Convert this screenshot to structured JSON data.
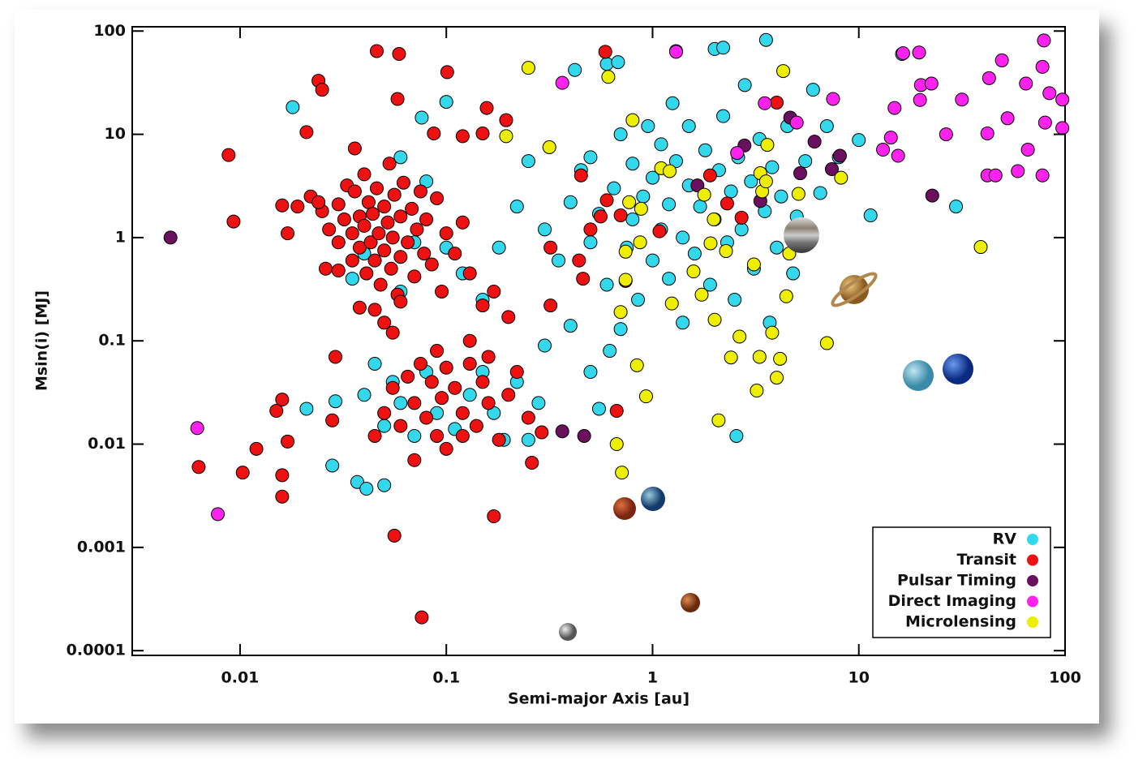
{
  "chart_data": {
    "type": "scatter",
    "x_label": "Semi-major Axis [au]",
    "y_label": "Msin(i) [MJ]",
    "xlog": true,
    "ylog": true,
    "xlim": [
      0.003,
      100
    ],
    "ylim": [
      9e-05,
      110
    ],
    "xticks": [
      0.01,
      0.1,
      1,
      10,
      100
    ],
    "yticks": [
      0.0001,
      0.001,
      0.01,
      0.1,
      1,
      10,
      100
    ],
    "legend": "lower right",
    "series": [
      {
        "name": "RV",
        "color": "#33d8ec",
        "x": [
          0.3,
          0.35,
          0.4,
          0.45,
          0.5,
          0.5,
          0.55,
          0.6,
          0.65,
          0.7,
          0.75,
          0.8,
          0.8,
          0.85,
          0.9,
          0.95,
          1.0,
          1.0,
          1.1,
          1.1,
          1.2,
          1.2,
          1.25,
          1.3,
          1.4,
          1.4,
          1.5,
          1.5,
          1.6,
          1.7,
          1.8,
          1.9,
          2.0,
          2.1,
          2.2,
          2.3,
          2.4,
          2.5,
          2.6,
          2.7,
          2.8,
          3.0,
          3.1,
          3.3,
          3.5,
          3.7,
          3.8,
          4.0,
          4.2,
          4.5,
          4.8,
          5.0,
          5.5,
          6.0,
          6.5,
          7.0,
          8.0,
          0.6,
          0.42,
          0.68,
          0.25,
          0.22,
          0.18,
          0.15,
          0.12,
          0.04,
          0.045,
          0.05,
          0.055,
          0.06,
          0.07,
          0.08,
          0.09,
          0.11,
          0.13,
          0.15,
          0.17,
          0.19,
          0.22,
          0.25,
          0.28,
          0.3,
          0.4,
          0.5,
          0.55,
          0.62,
          0.7,
          0.035,
          0.04,
          0.06,
          0.07,
          0.08,
          0.1,
          0.06,
          0.018,
          0.021,
          0.029,
          0.028,
          0.037,
          0.041,
          0.05,
          0.076,
          0.1,
          1.3,
          2.0,
          2.2,
          3.55,
          16.2,
          11.4,
          29.6,
          10.0,
          2.55
        ],
        "values": [
          1.2,
          0.6,
          2.2,
          4.5,
          0.9,
          6.0,
          1.7,
          0.35,
          3.0,
          10,
          0.8,
          1.5,
          5.2,
          0.25,
          2.5,
          12,
          0.6,
          3.8,
          1.2,
          8,
          0.4,
          2.1,
          20,
          5.5,
          1.0,
          0.15,
          3.2,
          12,
          0.7,
          2.0,
          7.0,
          0.35,
          1.5,
          4.5,
          15,
          0.9,
          2.8,
          0.25,
          6,
          1.2,
          30,
          3.5,
          0.5,
          9,
          1.8,
          0.15,
          4.8,
          0.8,
          2.5,
          12,
          0.45,
          1.6,
          5.5,
          27,
          2.7,
          12,
          6.0,
          48,
          42,
          50,
          5.5,
          2.0,
          0.8,
          0.25,
          0.45,
          0.03,
          0.06,
          0.015,
          0.04,
          0.025,
          0.012,
          0.05,
          0.02,
          0.014,
          0.03,
          0.05,
          0.02,
          0.011,
          0.04,
          0.011,
          0.025,
          0.09,
          0.14,
          0.05,
          0.022,
          0.08,
          0.13,
          0.4,
          0.7,
          0.3,
          0.9,
          3.5,
          0.8,
          6.0,
          18.3,
          0.022,
          0.026,
          0.0062,
          0.0043,
          0.0037,
          0.004,
          14.5,
          20.6,
          64,
          67,
          69,
          82,
          60,
          1.64,
          2.0,
          8.8,
          0.012
        ]
      },
      {
        "name": "Transit",
        "color": "#ee1111",
        "x": [
          0.022,
          0.025,
          0.027,
          0.03,
          0.03,
          0.032,
          0.033,
          0.035,
          0.035,
          0.036,
          0.038,
          0.038,
          0.04,
          0.04,
          0.041,
          0.042,
          0.043,
          0.044,
          0.045,
          0.046,
          0.047,
          0.048,
          0.05,
          0.05,
          0.052,
          0.053,
          0.054,
          0.055,
          0.056,
          0.058,
          0.06,
          0.06,
          0.062,
          0.065,
          0.068,
          0.07,
          0.072,
          0.075,
          0.078,
          0.08,
          0.085,
          0.09,
          0.095,
          0.1,
          0.11,
          0.12,
          0.13,
          0.026,
          0.03,
          0.045,
          0.05,
          0.055,
          0.024,
          0.019,
          0.017,
          0.016,
          0.038,
          0.06,
          0.045,
          0.05,
          0.055,
          0.06,
          0.065,
          0.07,
          0.075,
          0.08,
          0.085,
          0.09,
          0.095,
          0.1,
          0.1,
          0.11,
          0.12,
          0.13,
          0.14,
          0.15,
          0.16,
          0.18,
          0.2,
          0.22,
          0.25,
          0.09,
          0.07,
          0.12,
          0.16,
          0.2,
          0.15,
          0.17,
          0.13,
          0.29,
          0.32,
          0.32,
          0.44,
          0.5,
          0.56,
          0.6,
          0.0088,
          0.0093,
          0.0103,
          0.012,
          0.016,
          0.016,
          0.015,
          0.016,
          0.017,
          0.0063,
          0.021,
          0.024,
          0.025,
          0.046,
          0.059,
          0.058,
          0.101,
          0.076,
          0.056,
          0.17,
          0.59,
          0.157,
          0.195,
          0.45,
          0.7,
          0.74,
          1.08,
          1.9,
          2.3,
          2.7,
          4.0,
          0.26,
          0.67,
          0.46,
          0.029,
          0.028,
          0.036,
          0.087,
          0.12,
          0.15
        ],
        "values": [
          2.5,
          1.8,
          1.2,
          0.9,
          2.1,
          1.5,
          3.2,
          0.6,
          1.1,
          2.8,
          1.6,
          0.8,
          4.1,
          1.3,
          0.45,
          2.2,
          0.9,
          1.7,
          0.6,
          3.0,
          1.1,
          0.35,
          2.0,
          0.75,
          1.4,
          5.2,
          0.5,
          1.0,
          2.6,
          0.28,
          1.6,
          0.65,
          3.4,
          0.9,
          1.9,
          0.42,
          1.2,
          2.8,
          0.7,
          1.5,
          0.55,
          2.4,
          0.3,
          1.1,
          0.7,
          1.4,
          0.45,
          0.5,
          0.48,
          0.2,
          0.15,
          0.12,
          2.2,
          2.0,
          1.1,
          2.05,
          0.21,
          0.24,
          0.012,
          0.02,
          0.035,
          0.015,
          0.045,
          0.025,
          0.06,
          0.018,
          0.04,
          0.012,
          0.028,
          0.055,
          0.009,
          0.035,
          0.02,
          0.06,
          0.015,
          0.04,
          0.025,
          0.011,
          0.03,
          0.05,
          0.018,
          0.08,
          0.007,
          0.012,
          0.07,
          0.17,
          0.22,
          0.3,
          0.1,
          0.013,
          0.22,
          0.8,
          0.6,
          1.2,
          1.6,
          2.3,
          6.3,
          1.43,
          0.0053,
          0.009,
          0.0031,
          0.005,
          0.021,
          0.027,
          0.0106,
          0.006,
          10.5,
          33,
          27,
          64,
          60,
          22,
          40,
          0.00021,
          0.0013,
          0.002,
          63,
          18,
          13.7,
          4.0,
          1.64,
          0.38,
          1.15,
          4.0,
          2.14,
          1.56,
          20.3,
          0.0066,
          0.021,
          0.4,
          0.07,
          0.017,
          7.3,
          10.2,
          9.6,
          10.2
        ]
      },
      {
        "name": "Pulsar Timing",
        "color": "#6a105f",
        "x": [
          0.0046,
          0.365,
          0.466,
          2.79,
          3.33,
          4.65,
          5.2,
          6.1,
          7.4,
          8.1,
          22.7,
          1.65
        ],
        "values": [
          1,
          0.0133,
          0.012,
          7.8,
          2.26,
          14.5,
          4.2,
          8.5,
          4.6,
          6.2,
          2.55,
          3.2
        ]
      },
      {
        "name": "Direct Imaging",
        "color": "#ff22ee",
        "x": [
          0.0062,
          0.0078,
          1.3,
          0.365,
          2.57,
          3.5,
          5.0,
          7.5,
          16.4,
          19.6,
          14.9,
          13.1,
          14.3,
          15.5,
          19.8,
          20,
          22.5,
          26.5,
          31.6,
          42.8,
          49.4,
          42,
          42,
          46,
          52.6,
          59,
          64.6,
          66,
          77.7,
          79,
          80,
          77.7,
          84,
          97,
          97
        ],
        "values": [
          0.0143,
          0.0021,
          63,
          31.5,
          6.6,
          20,
          13,
          22,
          61,
          62,
          18,
          7.1,
          9.3,
          6.2,
          21.5,
          30,
          31,
          10,
          21.7,
          35,
          52,
          10.2,
          4,
          4,
          14.3,
          4.4,
          31,
          7.1,
          45,
          81,
          13,
          4.0,
          25,
          21.7,
          11.5
        ]
      },
      {
        "name": "Microlensing",
        "color": "#eeee00",
        "x": [
          0.25,
          0.61,
          0.195,
          0.316,
          0.8,
          0.77,
          0.88,
          0.87,
          0.74,
          0.74,
          0.7,
          0.71,
          0.67,
          0.84,
          0.93,
          1.1,
          1.21,
          1.24,
          1.58,
          1.73,
          1.78,
          1.91,
          2.0,
          1.98,
          2.09,
          2.27,
          2.4,
          2.64,
          3.1,
          3.2,
          3.3,
          3.33,
          3.4,
          3.6,
          3.55,
          3.8,
          4.0,
          4.15,
          4.3,
          4.45,
          5.1,
          7.0,
          8.2,
          39,
          4.6
        ],
        "values": [
          44,
          36,
          9.6,
          7.5,
          13.7,
          2.2,
          1.9,
          0.9,
          0.73,
          0.39,
          0.19,
          0.0053,
          0.01,
          0.058,
          0.029,
          4.7,
          4.4,
          0.23,
          0.47,
          0.28,
          2.6,
          0.88,
          0.16,
          1.5,
          0.017,
          0.74,
          0.069,
          0.11,
          0.55,
          0.033,
          0.07,
          4.2,
          2.8,
          7.9,
          3.5,
          0.12,
          0.044,
          0.067,
          41,
          0.27,
          2.65,
          0.095,
          3.8,
          0.81,
          0.7
        ]
      }
    ]
  }
}
